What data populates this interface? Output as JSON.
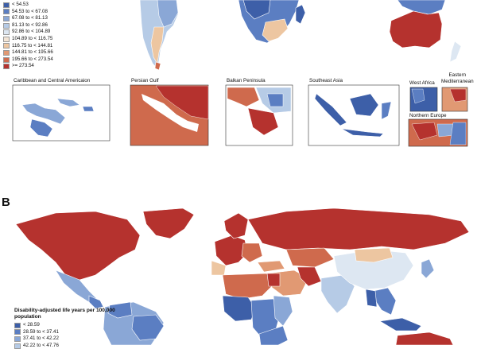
{
  "panel_b": {
    "letter": "B"
  },
  "legend_a": {
    "title": "",
    "items": [
      {
        "label": "< 54.53",
        "color": "#3d5fa8"
      },
      {
        "label": "54.53 to < 67.08",
        "color": "#5b7ec2"
      },
      {
        "label": "67.08 to < 81.13",
        "color": "#8aa7d6"
      },
      {
        "label": "81.13 to < 92.86",
        "color": "#b6cbe6"
      },
      {
        "label": "92.86 to < 104.89",
        "color": "#dde7f2"
      },
      {
        "label": "104.89 to < 116.75",
        "color": "#f3e5d6"
      },
      {
        "label": "116.75 to < 144.81",
        "color": "#edc6a1"
      },
      {
        "label": "144.81 to < 195.66",
        "color": "#e19973"
      },
      {
        "label": "195.66 to < 273.54",
        "color": "#cf6a4d"
      },
      {
        "label": ">= 273.54",
        "color": "#b5322e"
      }
    ]
  },
  "insets": [
    {
      "name": "caribbean",
      "label": "Caribbean and Central Americaion"
    },
    {
      "name": "persian-gulf",
      "label": "Persian Gulf"
    },
    {
      "name": "balkan",
      "label": "Balkan Peninsula"
    },
    {
      "name": "southeast-asia",
      "label": "Southeast Asia"
    },
    {
      "name": "west-africa",
      "label": "West Africa"
    },
    {
      "name": "eastern-med",
      "label": "Eastern\nMediterranean"
    },
    {
      "name": "northern-europe",
      "label": "Northern Europe"
    }
  ],
  "legend_b": {
    "title": "Disability-adjusted life years per 100,000 population",
    "items": [
      {
        "label": "< 28.59",
        "color": "#3d5fa8"
      },
      {
        "label": "28.59 to < 37.41",
        "color": "#5b7ec2"
      },
      {
        "label": "37.41 to < 42.22",
        "color": "#8aa7d6"
      },
      {
        "label": "42.22 to < 47.76",
        "color": "#b6cbe6"
      }
    ]
  },
  "colors": {
    "dark_blue": "#3d5fa8",
    "mid_blue": "#5b7ec2",
    "light_blue": "#8aa7d6",
    "pale_blue": "#b6cbe6",
    "very_pale": "#dde7f2",
    "pale_orange": "#edc6a1",
    "orange": "#e19973",
    "red_orange": "#cf6a4d",
    "dark_red": "#b5322e"
  }
}
